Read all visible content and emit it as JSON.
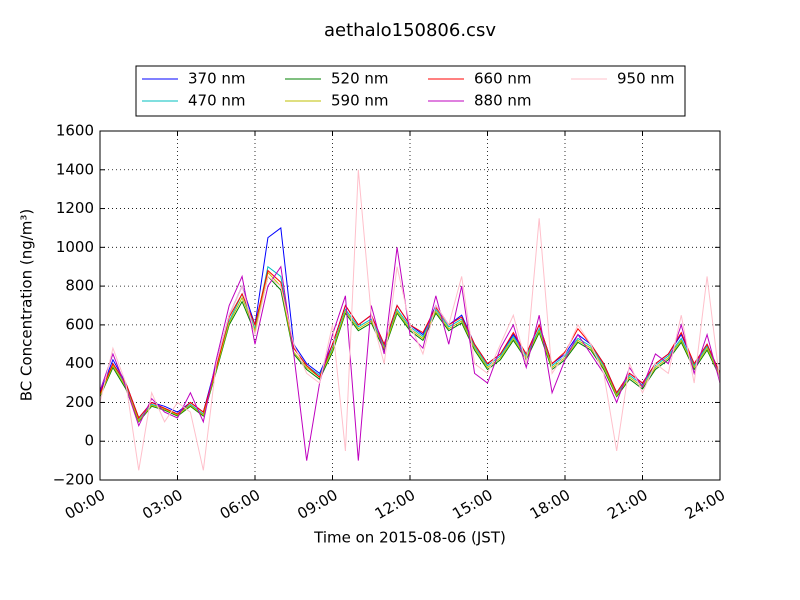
{
  "chart_data": {
    "type": "line",
    "title": "aethalo150806.csv",
    "x_label": "Time on 2015-08-06 (JST)",
    "y_label": "BC Concentration (ng/m³)",
    "x": [
      0,
      0.5,
      1,
      1.5,
      2,
      2.5,
      3,
      3.5,
      4,
      4.5,
      5,
      5.5,
      6,
      6.5,
      7,
      7.5,
      8,
      8.5,
      9,
      9.5,
      10,
      10.5,
      11,
      11.5,
      12,
      12.5,
      13,
      13.5,
      14,
      14.5,
      15,
      15.5,
      16,
      16.5,
      17,
      17.5,
      18,
      18.5,
      19,
      19.5,
      20,
      20.5,
      21,
      21.5,
      22,
      22.5,
      23,
      23.5,
      24
    ],
    "xlim": [
      0,
      24
    ],
    "xticks": [
      {
        "value": 0,
        "label": "00:00"
      },
      {
        "value": 3,
        "label": "03:00"
      },
      {
        "value": 6,
        "label": "06:00"
      },
      {
        "value": 9,
        "label": "09:00"
      },
      {
        "value": 12,
        "label": "12:00"
      },
      {
        "value": 15,
        "label": "15:00"
      },
      {
        "value": 18,
        "label": "18:00"
      },
      {
        "value": 21,
        "label": "21:00"
      },
      {
        "value": 24,
        "label": "24:00"
      }
    ],
    "ylim": [
      -200,
      1600
    ],
    "yticks": [
      {
        "value": -200,
        "label": "−200"
      },
      0,
      200,
      400,
      600,
      800,
      1000,
      1200,
      1400,
      1600
    ],
    "grid": true,
    "series": [
      {
        "name": "370 nm",
        "color": "#0000ff",
        "values": [
          250,
          420,
          300,
          120,
          200,
          180,
          150,
          200,
          150,
          400,
          650,
          800,
          600,
          1050,
          1100,
          500,
          400,
          350,
          500,
          700,
          600,
          650,
          500,
          700,
          600,
          550,
          700,
          600,
          650,
          500,
          400,
          450,
          550,
          450,
          600,
          400,
          450,
          550,
          500,
          400,
          250,
          350,
          300,
          400,
          450,
          550,
          400,
          500,
          350
        ]
      },
      {
        "name": "470 nm",
        "color": "#00bfbf",
        "values": [
          240,
          400,
          290,
          110,
          190,
          170,
          140,
          190,
          140,
          380,
          620,
          760,
          580,
          900,
          850,
          480,
          390,
          340,
          480,
          680,
          590,
          630,
          490,
          680,
          590,
          540,
          680,
          590,
          630,
          490,
          390,
          440,
          540,
          440,
          580,
          390,
          440,
          530,
          490,
          390,
          240,
          340,
          290,
          390,
          440,
          530,
          390,
          490,
          340
        ]
      },
      {
        "name": "520 nm",
        "color": "#008000",
        "values": [
          230,
          380,
          270,
          100,
          180,
          160,
          130,
          180,
          130,
          360,
          600,
          720,
          560,
          850,
          780,
          450,
          370,
          320,
          460,
          660,
          570,
          610,
          470,
          660,
          570,
          520,
          660,
          570,
          610,
          470,
          370,
          420,
          520,
          420,
          560,
          370,
          420,
          510,
          470,
          370,
          230,
          320,
          270,
          370,
          420,
          510,
          370,
          470,
          330
        ]
      },
      {
        "name": "590 nm",
        "color": "#bfbf00",
        "values": [
          235,
          390,
          280,
          105,
          185,
          165,
          135,
          185,
          135,
          370,
          610,
          740,
          570,
          870,
          800,
          460,
          380,
          330,
          470,
          670,
          580,
          620,
          480,
          670,
          580,
          530,
          670,
          580,
          620,
          480,
          380,
          430,
          530,
          430,
          570,
          380,
          430,
          520,
          480,
          380,
          235,
          330,
          280,
          380,
          430,
          520,
          380,
          480,
          335
        ]
      },
      {
        "name": "660 nm",
        "color": "#ff0000",
        "values": [
          245,
          400,
          300,
          120,
          200,
          170,
          140,
          200,
          150,
          380,
          640,
          760,
          600,
          880,
          820,
          480,
          390,
          330,
          500,
          700,
          600,
          650,
          500,
          700,
          600,
          560,
          690,
          600,
          640,
          500,
          400,
          450,
          560,
          450,
          600,
          400,
          460,
          580,
          500,
          400,
          250,
          350,
          300,
          400,
          450,
          560,
          400,
          500,
          350
        ]
      },
      {
        "name": "880 nm",
        "color": "#bf00bf",
        "values": [
          260,
          450,
          280,
          80,
          220,
          150,
          120,
          250,
          100,
          420,
          700,
          850,
          500,
          800,
          900,
          450,
          -100,
          300,
          550,
          750,
          -100,
          700,
          450,
          1000,
          550,
          480,
          750,
          500,
          800,
          350,
          300,
          480,
          600,
          380,
          650,
          250,
          420,
          550,
          450,
          350,
          200,
          380,
          280,
          450,
          400,
          600,
          350,
          550,
          300
        ]
      },
      {
        "name": "950 nm",
        "color": "#ffc0cb",
        "values": [
          200,
          480,
          300,
          -150,
          250,
          100,
          200,
          150,
          -150,
          400,
          650,
          800,
          550,
          850,
          800,
          500,
          350,
          300,
          600,
          -50,
          1400,
          650,
          400,
          900,
          600,
          450,
          700,
          600,
          850,
          400,
          350,
          500,
          650,
          400,
          1150,
          350,
          450,
          600,
          500,
          350,
          -50,
          400,
          250,
          400,
          350,
          650,
          300,
          850,
          300
        ]
      }
    ]
  }
}
